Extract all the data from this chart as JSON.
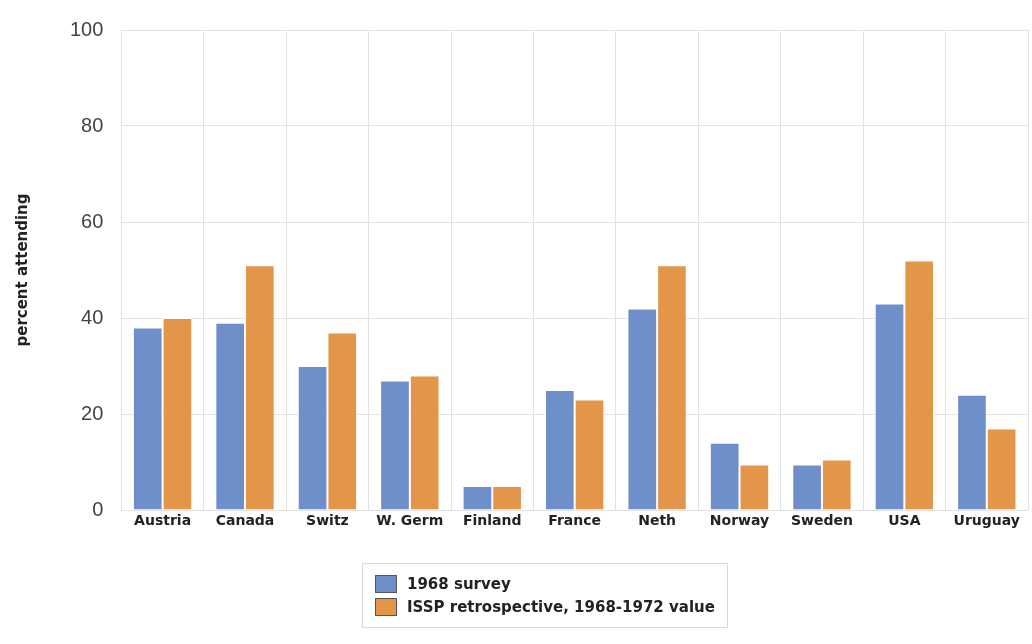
{
  "chart_data": {
    "type": "bar",
    "ylabel": "percent attending",
    "categories": [
      "Austria",
      "Canada",
      "Switz",
      "W. Germ",
      "Finland",
      "France",
      "Neth",
      "Norway",
      "Sweden",
      "USA",
      "Uruguay"
    ],
    "series": [
      {
        "name": "1968 survey",
        "color": "#6f8fcb",
        "values": [
          38,
          39,
          30,
          27,
          5,
          25,
          42,
          14,
          9.5,
          43,
          24
        ]
      },
      {
        "name": "ISSP retrospective, 1968-1972 value",
        "color": "#e3954a",
        "values": [
          40,
          51,
          37,
          28,
          5,
          23,
          51,
          9.5,
          10.5,
          52,
          17
        ]
      }
    ],
    "ylim": [
      0,
      100
    ],
    "yticks": [
      0,
      20,
      40,
      60,
      80,
      100
    ],
    "grid": true,
    "legend": "bottom"
  }
}
